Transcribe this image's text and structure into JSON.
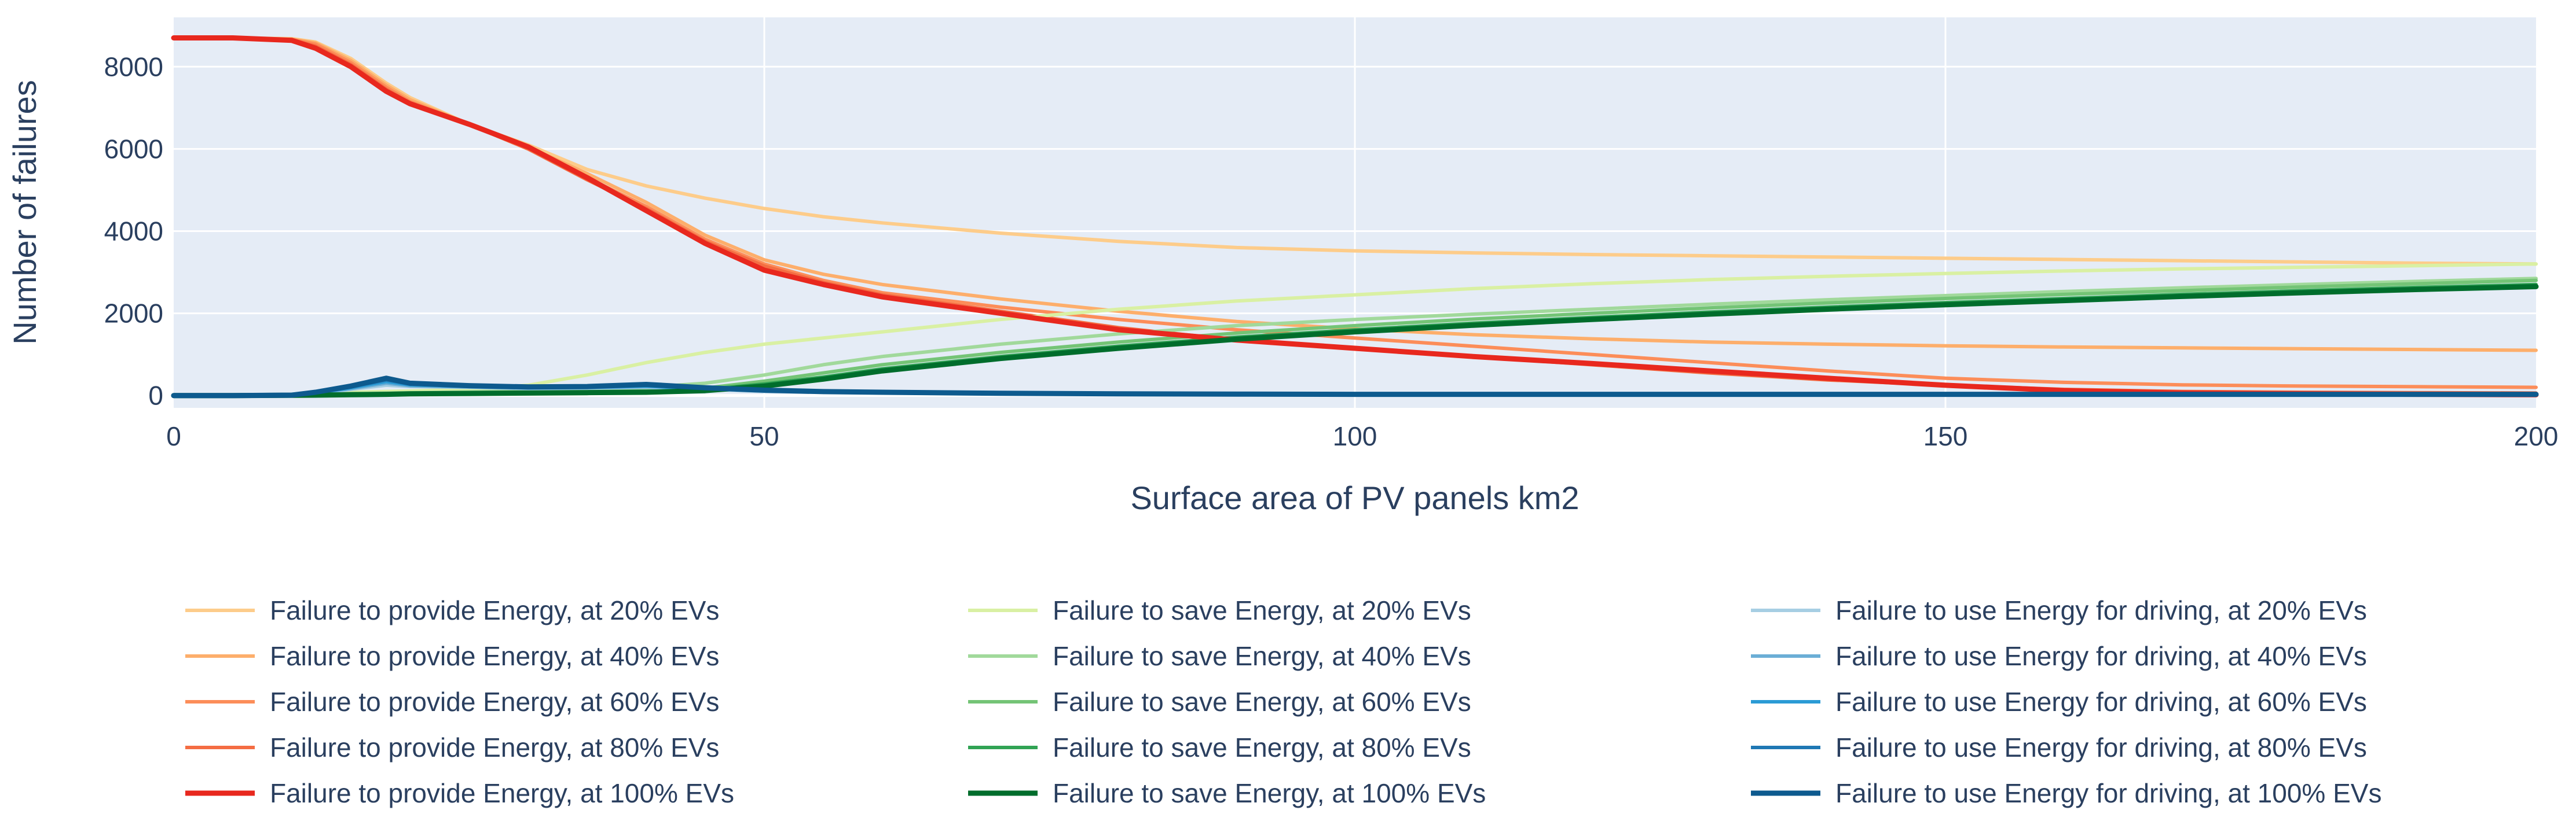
{
  "chart_data": {
    "type": "line",
    "title": "",
    "xlabel": "Surface area of PV panels km2",
    "ylabel": "Number of failures",
    "xlim": [
      0,
      200
    ],
    "ylim": [
      -300,
      9200
    ],
    "xticks": [
      0,
      50,
      100,
      150,
      200
    ],
    "yticks": [
      0,
      2000,
      4000,
      6000,
      8000
    ],
    "xtick_labels": [
      "0",
      "50",
      "100",
      "150",
      "200"
    ],
    "ytick_labels": [
      "0",
      "2000",
      "4000",
      "6000",
      "8000"
    ],
    "grid": true,
    "legend_position": "bottom",
    "colors": {
      "plot_background": "#e5ecf6",
      "grid": "#ffffff",
      "axis_text": "#2a3f5f"
    },
    "x": [
      0,
      5,
      10,
      12,
      15,
      18,
      20,
      25,
      30,
      35,
      40,
      45,
      50,
      55,
      60,
      70,
      80,
      90,
      100,
      110,
      120,
      130,
      140,
      150,
      160,
      170,
      180,
      190,
      200
    ],
    "series": [
      {
        "name": "Failure to provide Energy, at 20% EVs",
        "color": "#fdcc8a",
        "width": 6,
        "values": [
          8700,
          8700,
          8680,
          8600,
          8200,
          7600,
          7250,
          6600,
          6100,
          5500,
          5100,
          4800,
          4550,
          4350,
          4200,
          3950,
          3750,
          3600,
          3520,
          3470,
          3430,
          3400,
          3370,
          3340,
          3310,
          3280,
          3250,
          3220,
          3200
        ]
      },
      {
        "name": "Failure to provide Energy, at 40% EVs",
        "color": "#fdae6b",
        "width": 6,
        "values": [
          8700,
          8700,
          8670,
          8580,
          8150,
          7550,
          7200,
          6600,
          6050,
          5400,
          4700,
          3900,
          3300,
          2950,
          2700,
          2350,
          2050,
          1800,
          1620,
          1480,
          1380,
          1300,
          1250,
          1210,
          1180,
          1160,
          1140,
          1120,
          1100
        ]
      },
      {
        "name": "Failure to provide Energy, at 60% EVs",
        "color": "#fc8d59",
        "width": 6,
        "values": [
          8700,
          8700,
          8660,
          8550,
          8100,
          7500,
          7150,
          6600,
          6000,
          5300,
          4600,
          3800,
          3200,
          2800,
          2500,
          2150,
          1850,
          1600,
          1400,
          1200,
          1000,
          800,
          600,
          420,
          320,
          260,
          230,
          215,
          200
        ]
      },
      {
        "name": "Failure to provide Energy, at 80% EVs",
        "color": "#f46d43",
        "width": 6,
        "values": [
          8700,
          8700,
          8650,
          8500,
          8050,
          7450,
          7120,
          6600,
          6000,
          5250,
          4550,
          3750,
          3150,
          2750,
          2450,
          2050,
          1650,
          1350,
          1150,
          950,
          750,
          550,
          380,
          250,
          150,
          100,
          80,
          70,
          60
        ]
      },
      {
        "name": "Failure to provide Energy, at 100% EVs",
        "color": "#e8281e",
        "width": 9,
        "values": [
          8700,
          8700,
          8640,
          8450,
          8000,
          7400,
          7100,
          6600,
          6050,
          5300,
          4500,
          3700,
          3050,
          2700,
          2400,
          2000,
          1600,
          1350,
          1150,
          950,
          780,
          600,
          420,
          250,
          120,
          60,
          40,
          30,
          20
        ]
      },
      {
        "name": "Failure to save Energy, at 20% EVs",
        "color": "#d9f0a3",
        "width": 6,
        "values": [
          0,
          0,
          20,
          50,
          80,
          100,
          110,
          150,
          250,
          500,
          800,
          1050,
          1250,
          1400,
          1550,
          1850,
          2100,
          2300,
          2450,
          2600,
          2720,
          2820,
          2900,
          2970,
          3030,
          3080,
          3120,
          3160,
          3200
        ]
      },
      {
        "name": "Failure to save Energy, at 40% EVs",
        "color": "#a1d99b",
        "width": 6,
        "values": [
          0,
          0,
          10,
          30,
          50,
          60,
          70,
          90,
          120,
          150,
          200,
          300,
          500,
          750,
          950,
          1250,
          1500,
          1700,
          1850,
          1980,
          2100,
          2220,
          2330,
          2430,
          2530,
          2620,
          2700,
          2780,
          2850
        ]
      },
      {
        "name": "Failure to save Energy, at 60% EVs",
        "color": "#74c476",
        "width": 6,
        "values": [
          0,
          0,
          10,
          20,
          40,
          50,
          60,
          70,
          90,
          110,
          130,
          180,
          350,
          550,
          750,
          1050,
          1300,
          1520,
          1700,
          1860,
          2000,
          2130,
          2250,
          2360,
          2460,
          2550,
          2640,
          2720,
          2800
        ]
      },
      {
        "name": "Failure to save Energy, at 80% EVs",
        "color": "#31a354",
        "width": 6,
        "values": [
          0,
          0,
          5,
          15,
          30,
          40,
          50,
          60,
          70,
          80,
          100,
          150,
          280,
          450,
          650,
          950,
          1200,
          1420,
          1600,
          1760,
          1900,
          2030,
          2150,
          2260,
          2360,
          2460,
          2550,
          2630,
          2700
        ]
      },
      {
        "name": "Failure to save Energy, at 100% EVs",
        "color": "#006d2c",
        "width": 9,
        "values": [
          0,
          0,
          5,
          10,
          20,
          30,
          40,
          50,
          60,
          70,
          80,
          120,
          230,
          400,
          600,
          900,
          1150,
          1370,
          1550,
          1710,
          1850,
          1980,
          2100,
          2210,
          2310,
          2410,
          2500,
          2580,
          2650
        ]
      },
      {
        "name": "Failure to use Energy for driving, at 20% EVs",
        "color": "#a6cee3",
        "width": 6,
        "values": [
          0,
          0,
          10,
          40,
          150,
          250,
          220,
          200,
          170,
          180,
          200,
          150,
          100,
          80,
          70,
          50,
          40,
          35,
          30,
          30,
          30,
          30,
          30,
          30,
          30,
          30,
          30,
          30,
          30
        ]
      },
      {
        "name": "Failure to use Energy for driving, at 40% EVs",
        "color": "#6baed6",
        "width": 6,
        "values": [
          0,
          0,
          10,
          50,
          170,
          300,
          240,
          210,
          180,
          190,
          220,
          160,
          110,
          85,
          70,
          50,
          40,
          35,
          30,
          30,
          30,
          30,
          30,
          30,
          30,
          30,
          30,
          30,
          30
        ]
      },
      {
        "name": "Failure to use Energy for driving, at 60% EVs",
        "color": "#2b9bd5",
        "width": 6,
        "values": [
          0,
          0,
          10,
          60,
          190,
          340,
          260,
          220,
          190,
          200,
          230,
          170,
          115,
          90,
          75,
          50,
          40,
          35,
          30,
          30,
          30,
          30,
          30,
          30,
          30,
          30,
          30,
          30,
          30
        ]
      },
      {
        "name": "Failure to use Energy for driving, at 80% EVs",
        "color": "#1f78b4",
        "width": 6,
        "values": [
          0,
          0,
          10,
          70,
          210,
          380,
          280,
          230,
          200,
          210,
          250,
          180,
          120,
          90,
          75,
          50,
          40,
          35,
          30,
          30,
          30,
          30,
          30,
          30,
          30,
          30,
          30,
          30,
          30
        ]
      },
      {
        "name": "Failure to use Energy for driving, at 100% EVs",
        "color": "#0d5a8e",
        "width": 9,
        "values": [
          0,
          0,
          10,
          80,
          230,
          420,
          300,
          240,
          210,
          220,
          270,
          190,
          130,
          95,
          80,
          55,
          40,
          35,
          30,
          30,
          30,
          30,
          30,
          30,
          30,
          30,
          30,
          30,
          30
        ]
      }
    ]
  }
}
